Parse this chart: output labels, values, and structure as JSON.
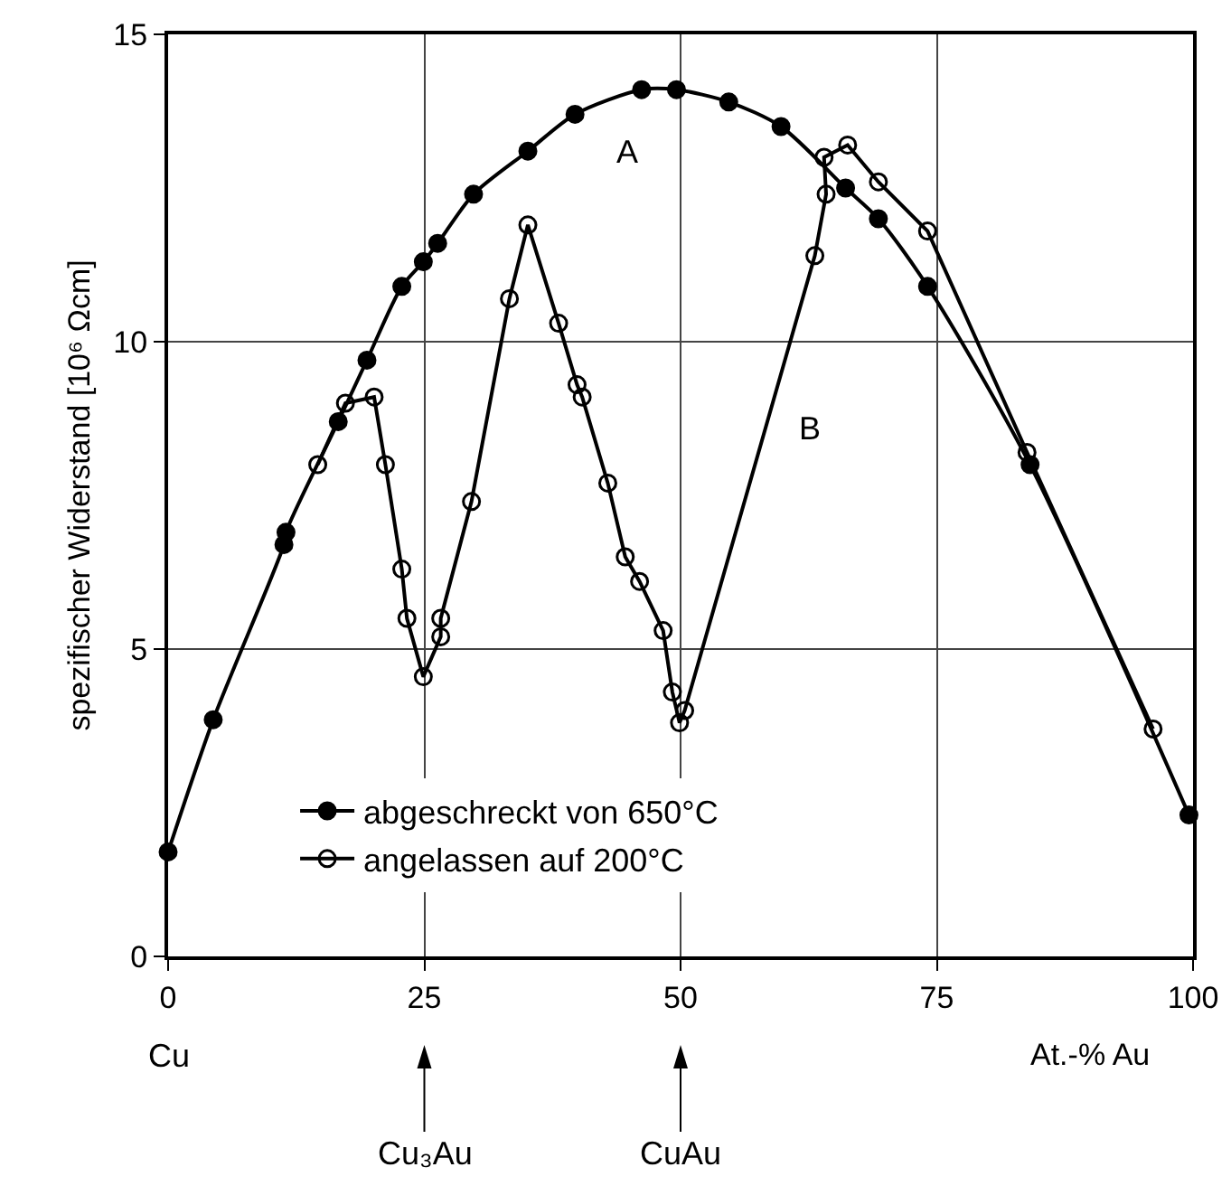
{
  "chart_data": {
    "type": "line",
    "ylabel": "spezifischer Widerstand [10⁶ Ωcm]",
    "xlabel": "At.-% Au",
    "xlim": [
      0,
      100
    ],
    "xticks": [
      0,
      25,
      50,
      75,
      100
    ],
    "ylim": [
      0,
      15
    ],
    "yticks": [
      0,
      5,
      10,
      15
    ],
    "grid": true,
    "legend": "bottom",
    "marker": "circle",
    "series": [
      {
        "name": "abgeschreckt von 650°C",
        "color": "#000000",
        "x": [
          0,
          4.4,
          11.3,
          11.5,
          16.6,
          19.4,
          22.8,
          24.9,
          26.3,
          29.8,
          35.1,
          39.7,
          46.2,
          49.6,
          54.7,
          59.8,
          66.1,
          69.3,
          74.1,
          84.1,
          99.6
        ],
        "values": [
          1.7,
          3.85,
          6.7,
          6.9,
          8.7,
          9.7,
          10.9,
          11.3,
          11.6,
          12.4,
          13.1,
          13.7,
          14.1,
          14.1,
          13.9,
          13.5,
          12.5,
          12.0,
          10.9,
          8.0,
          2.3
        ]
      },
      {
        "name": "angelassen auf 200°C",
        "color": "#000000",
        "x": [
          14.6,
          17.3,
          20.1,
          21.2,
          22.8,
          23.3,
          24.9,
          26.6,
          26.6,
          29.6,
          33.3,
          35.1,
          38.1,
          39.9,
          40.4,
          42.9,
          44.6,
          46.0,
          48.3,
          49.2,
          49.9,
          50.4,
          63.1,
          64.2,
          64.0,
          66.3,
          69.3,
          74.1,
          83.8,
          96.1
        ],
        "values": [
          8.0,
          9.0,
          9.1,
          8.0,
          6.3,
          5.5,
          4.55,
          5.2,
          5.5,
          7.4,
          10.7,
          11.9,
          10.3,
          9.3,
          9.1,
          7.7,
          6.5,
          6.1,
          5.3,
          4.3,
          3.8,
          4.0,
          11.4,
          12.4,
          13.0,
          13.2,
          12.6,
          11.8,
          8.2,
          3.7
        ]
      }
    ],
    "annotations": [
      "A",
      "B",
      "Cu",
      "Cu₃Au",
      "CuAu"
    ]
  }
}
